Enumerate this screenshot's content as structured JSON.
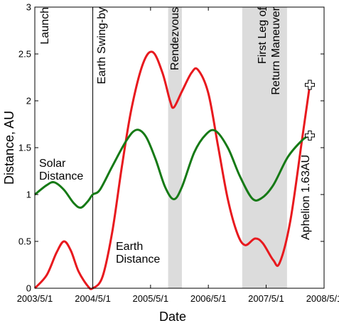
{
  "chart_data": {
    "type": "line",
    "xlabel": "Date",
    "ylabel": "Distance, AU",
    "ylim": [
      0,
      3
    ],
    "yticks": [
      0,
      0.5,
      1,
      1.5,
      2,
      2.5,
      3
    ],
    "ytick_labels": [
      "0",
      "0.5",
      "1",
      "1.5",
      "2",
      "2.5",
      "3"
    ],
    "xlim": [
      "2003-05-01",
      "2008-05-01"
    ],
    "xticks": [
      "2003-05-01",
      "2004-05-01",
      "2005-05-01",
      "2006-05-01",
      "2007-05-01",
      "2008-05-01"
    ],
    "xtick_labels": [
      "2003/5/1",
      "2004/5/1",
      "2005/5/1",
      "2006/5/1",
      "2007/5/1",
      "2008/5/1"
    ],
    "grid": false,
    "series": [
      {
        "name": "Earth Distance",
        "color": "#e8191e",
        "points": [
          [
            "2003-05-01",
            0.0
          ],
          [
            "2003-07-15",
            0.14
          ],
          [
            "2003-09-15",
            0.38
          ],
          [
            "2003-11-01",
            0.5
          ],
          [
            "2003-12-15",
            0.4
          ],
          [
            "2004-02-01",
            0.18
          ],
          [
            "2004-04-01",
            0.02
          ],
          [
            "2004-05-01",
            0.0
          ],
          [
            "2004-07-01",
            0.12
          ],
          [
            "2004-09-01",
            0.6
          ],
          [
            "2004-11-01",
            1.3
          ],
          [
            "2005-01-01",
            1.92
          ],
          [
            "2005-03-15",
            2.4
          ],
          [
            "2005-05-15",
            2.52
          ],
          [
            "2005-07-15",
            2.3
          ],
          [
            "2005-09-01",
            2.0
          ],
          [
            "2005-09-25",
            1.93
          ],
          [
            "2005-11-15",
            2.1
          ],
          [
            "2006-01-15",
            2.3
          ],
          [
            "2006-02-25",
            2.33
          ],
          [
            "2006-05-01",
            2.08
          ],
          [
            "2006-07-01",
            1.52
          ],
          [
            "2006-09-01",
            0.95
          ],
          [
            "2006-11-01",
            0.58
          ],
          [
            "2006-12-20",
            0.46
          ],
          [
            "2007-02-20",
            0.53
          ],
          [
            "2007-04-10",
            0.48
          ],
          [
            "2007-06-15",
            0.3
          ],
          [
            "2007-07-25",
            0.27
          ],
          [
            "2007-10-01",
            0.72
          ],
          [
            "2007-12-15",
            1.6
          ],
          [
            "2008-02-01",
            2.17
          ]
        ]
      },
      {
        "name": "Solar Distance",
        "color": "#167a16",
        "points": [
          [
            "2003-05-01",
            1.0
          ],
          [
            "2003-07-15",
            1.1
          ],
          [
            "2003-09-01",
            1.13
          ],
          [
            "2003-11-01",
            1.05
          ],
          [
            "2004-01-01",
            0.91
          ],
          [
            "2004-02-15",
            0.86
          ],
          [
            "2004-04-01",
            0.93
          ],
          [
            "2004-05-01",
            1.0
          ],
          [
            "2004-06-15",
            1.05
          ],
          [
            "2004-09-01",
            1.3
          ],
          [
            "2004-12-01",
            1.58
          ],
          [
            "2005-02-01",
            1.69
          ],
          [
            "2005-04-01",
            1.62
          ],
          [
            "2005-06-01",
            1.38
          ],
          [
            "2005-08-01",
            1.08
          ],
          [
            "2005-09-25",
            0.95
          ],
          [
            "2005-11-15",
            1.08
          ],
          [
            "2006-02-01",
            1.45
          ],
          [
            "2006-04-15",
            1.64
          ],
          [
            "2006-06-15",
            1.68
          ],
          [
            "2006-09-01",
            1.5
          ],
          [
            "2006-11-15",
            1.2
          ],
          [
            "2007-02-01",
            0.96
          ],
          [
            "2007-04-01",
            0.96
          ],
          [
            "2007-06-15",
            1.1
          ],
          [
            "2007-09-15",
            1.4
          ],
          [
            "2007-12-15",
            1.58
          ],
          [
            "2008-02-01",
            1.63
          ]
        ]
      }
    ],
    "vertical_lines": [
      {
        "date": "2004-05-01",
        "label": "Earth Swing-by"
      }
    ],
    "shaded_bands": [
      {
        "start": "2005-08-20",
        "end": "2005-11-15",
        "label": "Rendezvous"
      },
      {
        "start": "2006-12-01",
        "end": "2007-09-10",
        "label_lines": [
          "First Leg of",
          "Return Maneuver"
        ]
      }
    ],
    "markers": [
      {
        "date": "2008-02-01",
        "value": 2.17,
        "shape": "cross"
      },
      {
        "date": "2008-02-01",
        "value": 1.63,
        "shape": "cross"
      }
    ],
    "annotations": {
      "launch": "Launch",
      "aphelion": "Aphelion 1.63AU",
      "solar_lines": [
        "Solar",
        "Distance"
      ],
      "earth_lines": [
        "Earth",
        "Distance"
      ]
    }
  }
}
